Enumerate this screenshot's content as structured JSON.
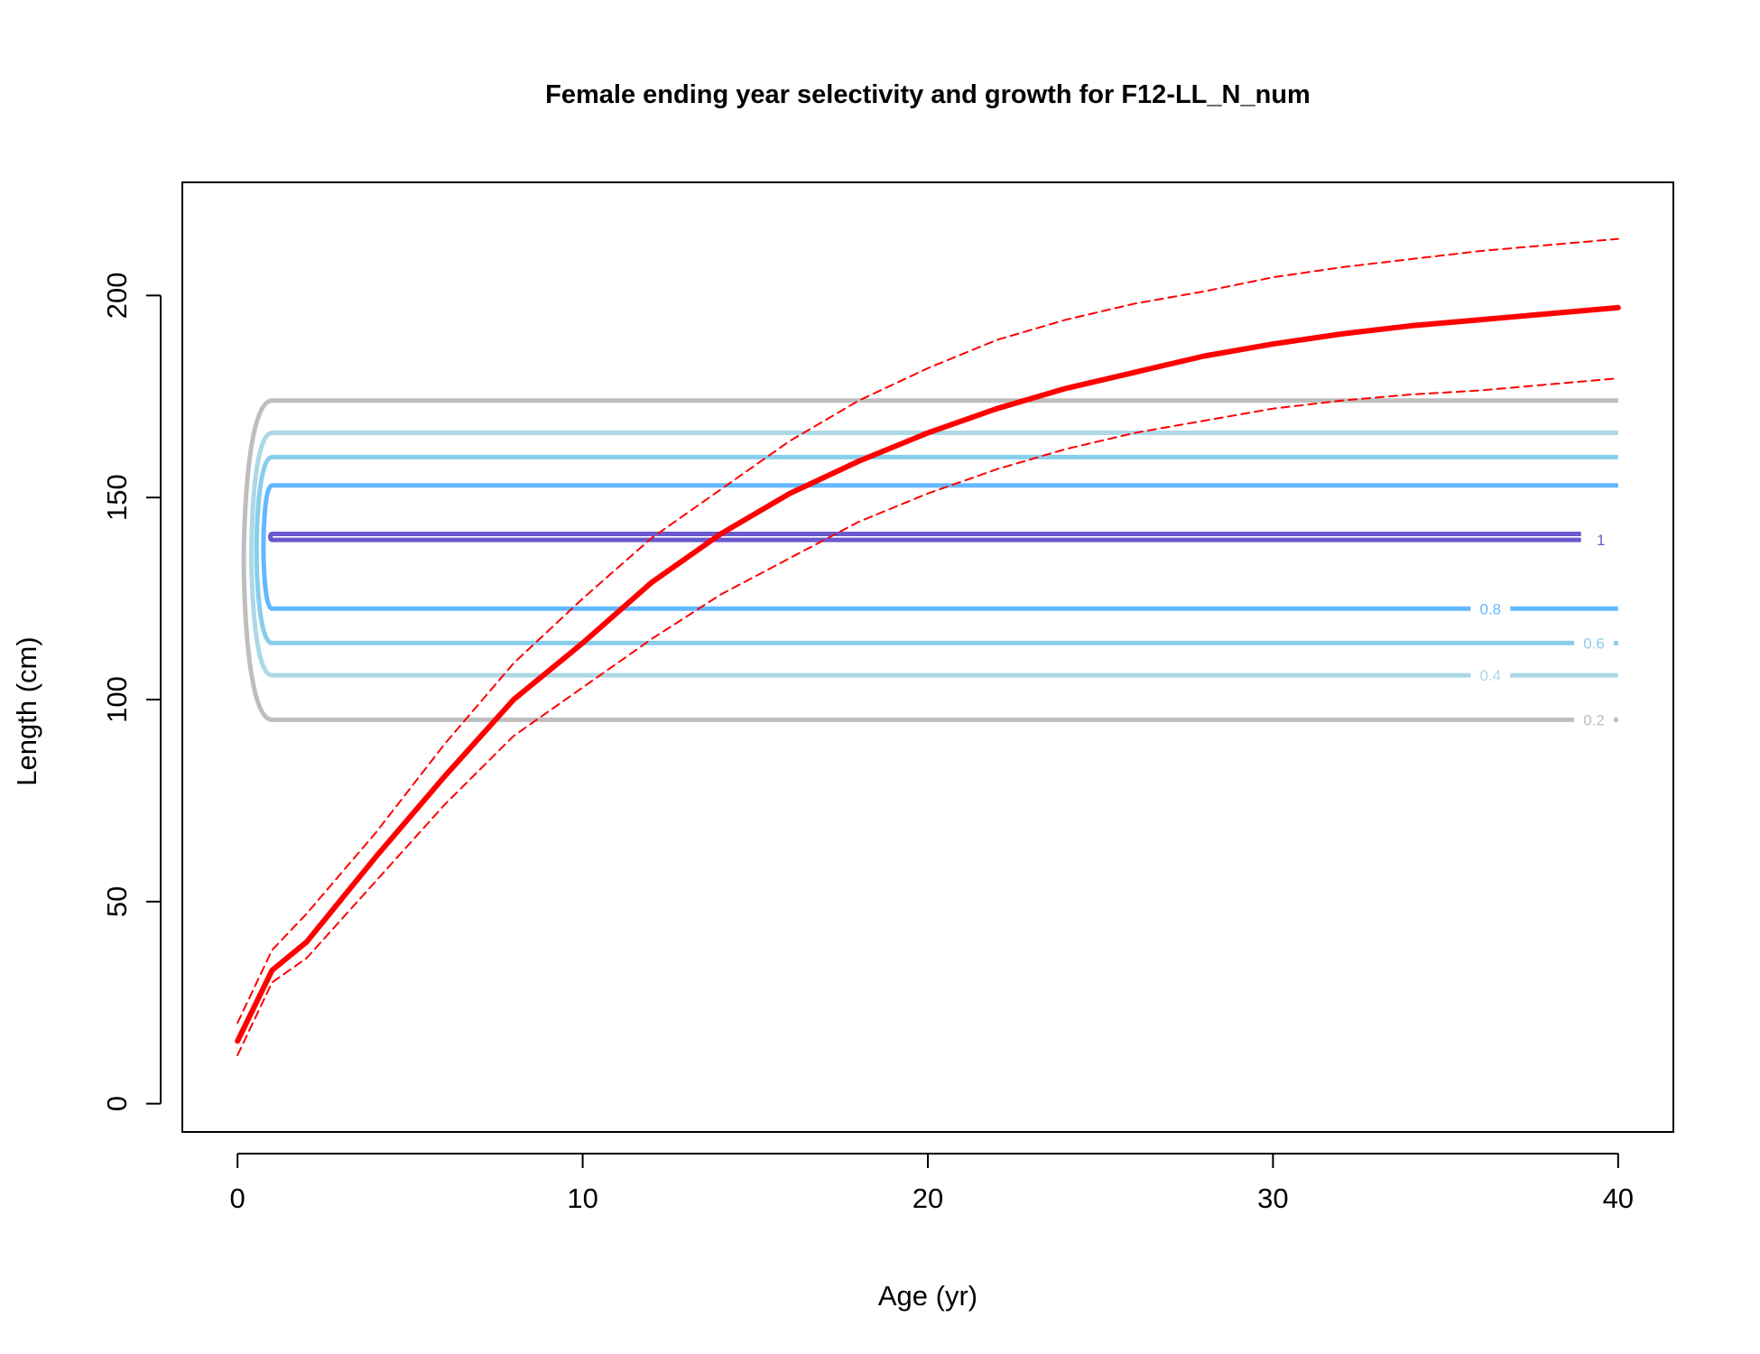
{
  "chart_data": {
    "type": "line",
    "title": "Female ending year selectivity and growth for F12-LL_N_num",
    "xlabel": "Age (yr)",
    "ylabel": "Length (cm)",
    "xlim": [
      -1.6,
      41.6
    ],
    "ylim": [
      -7,
      228
    ],
    "xticks": [
      0,
      10,
      20,
      30,
      40
    ],
    "yticks": [
      0,
      50,
      100,
      150,
      200
    ],
    "grid": false,
    "series": [
      {
        "style": "solid-thick",
        "color": "#ff0000",
        "x": [
          0,
          1,
          2,
          4,
          6,
          8,
          10,
          12,
          14,
          16,
          18,
          20,
          22,
          24,
          26,
          28,
          30,
          32,
          34,
          36,
          38,
          40
        ],
        "y": [
          15.5,
          33,
          40,
          61,
          81,
          100,
          114,
          129,
          141,
          151,
          159,
          166,
          172,
          177,
          181,
          185,
          188,
          190.5,
          192.5,
          194,
          195.5,
          197
        ]
      },
      {
        "style": "dashed",
        "color": "#ff0000",
        "x": [
          0,
          1,
          2,
          4,
          6,
          8,
          10,
          12,
          14,
          16,
          18,
          20,
          22,
          24,
          26,
          28,
          30,
          32,
          34,
          36,
          38,
          40
        ],
        "y": [
          20,
          38,
          47,
          67,
          89,
          109,
          125,
          140,
          152,
          164,
          174,
          182,
          189,
          194,
          198,
          201,
          204.5,
          207,
          209,
          211,
          212.5,
          214
        ]
      },
      {
        "style": "dashed",
        "color": "#ff0000",
        "x": [
          0,
          1,
          2,
          4,
          6,
          8,
          10,
          12,
          14,
          16,
          18,
          20,
          22,
          24,
          26,
          28,
          30,
          32,
          34,
          36,
          38,
          40
        ],
        "y": [
          12,
          30,
          36,
          55,
          74,
          91,
          103,
          115,
          126,
          135,
          144,
          151,
          157,
          162,
          166,
          169,
          172,
          174,
          175.5,
          176.5,
          178,
          179.5
        ]
      }
    ],
    "contours": [
      {
        "label": "0.2",
        "color": "#bebebe",
        "low": 95,
        "high": 174,
        "x_start": 1,
        "left_x": 0.18,
        "label_x": 39.3
      },
      {
        "label": "0.4",
        "color": "#add8e6",
        "low": 106,
        "high": 166,
        "x_start": 1,
        "left_x": 0.4,
        "label_x": 36.3
      },
      {
        "label": "0.6",
        "color": "#87ceeb",
        "low": 114,
        "high": 160,
        "x_start": 1,
        "left_x": 0.55,
        "label_x": 39.3
      },
      {
        "label": "0.8",
        "color": "#63b8ff",
        "low": 122.5,
        "high": 153,
        "x_start": 1,
        "left_x": 0.75,
        "label_x": 36.3
      },
      {
        "label": "1",
        "color": "#6a5acd",
        "low": 139.5,
        "high": 141,
        "x_start": 1,
        "left_x": 0.95,
        "label_x": 39.5
      }
    ]
  }
}
